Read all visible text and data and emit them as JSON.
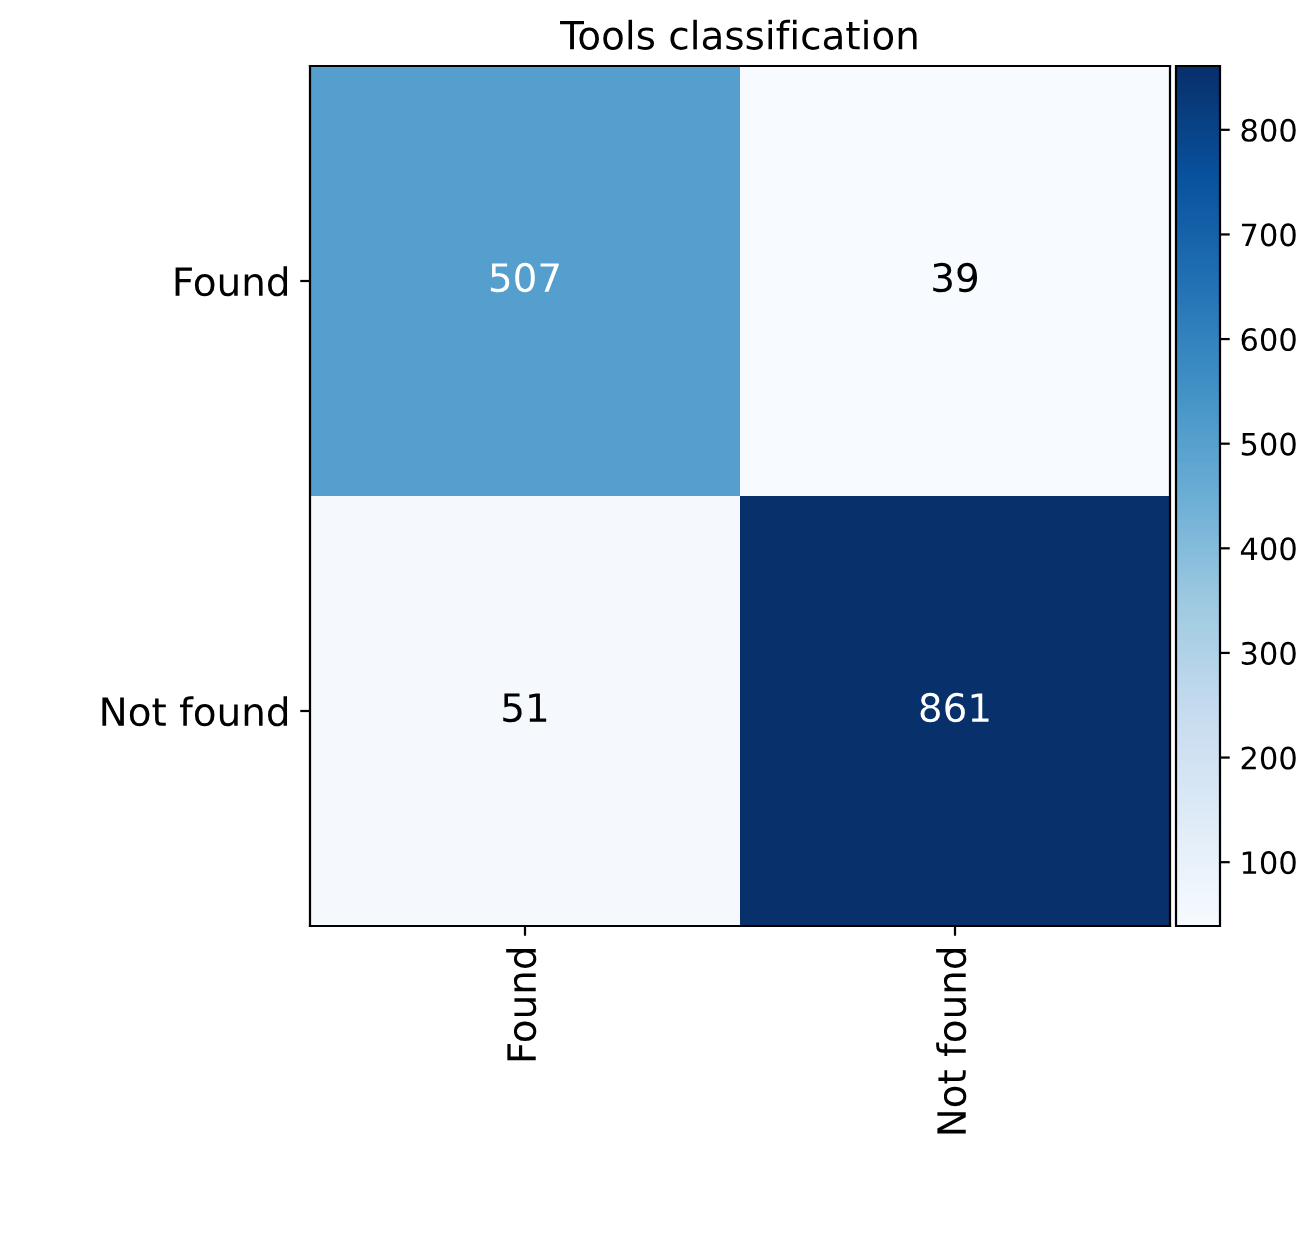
{
  "chart_data": {
    "type": "heatmap",
    "title": "Tools classification",
    "categories": [
      "Found",
      "Not found"
    ],
    "y_categories": [
      "Found",
      "Not found"
    ],
    "cells": [
      [
        507,
        39
      ],
      [
        51,
        861
      ]
    ],
    "data_labels": true,
    "clim": [
      39,
      861
    ],
    "cticks": [
      100,
      200,
      300,
      400,
      500,
      600,
      700,
      800
    ]
  }
}
